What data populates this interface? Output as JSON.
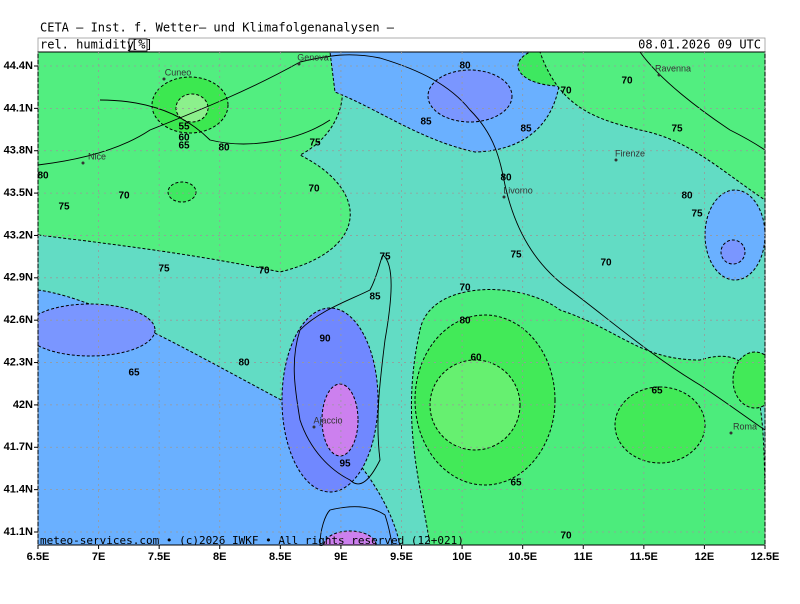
{
  "header": {
    "title": "CETA – Inst. f. Wetter– und Klimafolgenanalysen –",
    "parameter": "rel. humidity",
    "unit": "[%]",
    "valid_time": "08.01.2026 09 UTC"
  },
  "footer": "meteo-services.com • (c)2026 IWKF • All rights reserved (12+021)",
  "map": {
    "lat_ticks": [
      {
        "value": 44.4,
        "label": "44.4N"
      },
      {
        "value": 44.1,
        "label": "44.1N"
      },
      {
        "value": 43.8,
        "label": "43.8N"
      },
      {
        "value": 43.5,
        "label": "43.5N"
      },
      {
        "value": 43.2,
        "label": "43.2N"
      },
      {
        "value": 42.9,
        "label": "42.9N"
      },
      {
        "value": 42.6,
        "label": "42.6N"
      },
      {
        "value": 42.3,
        "label": "42.3N"
      },
      {
        "value": 42,
        "label": "42N"
      },
      {
        "value": 41.7,
        "label": "41.7N"
      },
      {
        "value": 41.4,
        "label": "41.4N"
      },
      {
        "value": 41.1,
        "label": "41.1N"
      }
    ],
    "lon_ticks": [
      {
        "value": 6.5,
        "label": "6.5E"
      },
      {
        "value": 7,
        "label": "7E"
      },
      {
        "value": 7.5,
        "label": "7.5E"
      },
      {
        "value": 8,
        "label": "8E"
      },
      {
        "value": 8.5,
        "label": "8.5E"
      },
      {
        "value": 9,
        "label": "9E"
      },
      {
        "value": 9.5,
        "label": "9.5E"
      },
      {
        "value": 10,
        "label": "10E"
      },
      {
        "value": 10.5,
        "label": "10.5E"
      },
      {
        "value": 11,
        "label": "11E"
      },
      {
        "value": 11.5,
        "label": "11.5E"
      },
      {
        "value": 12,
        "label": "12E"
      },
      {
        "value": 12.5,
        "label": "12.5E"
      }
    ],
    "cities": [
      "Cuneo",
      "Genova",
      "Ravenna",
      "Firenze",
      "Nice",
      "Livorno",
      "Ajaccio",
      "Roma"
    ],
    "contour_labels": [
      80,
      70,
      70,
      85,
      85,
      75,
      55,
      60,
      65,
      80,
      75,
      80,
      80,
      70,
      70,
      75,
      80,
      75,
      75,
      75,
      70,
      75,
      70,
      70,
      85,
      80,
      90,
      60,
      80,
      65,
      65,
      95,
      65,
      70
    ]
  }
}
